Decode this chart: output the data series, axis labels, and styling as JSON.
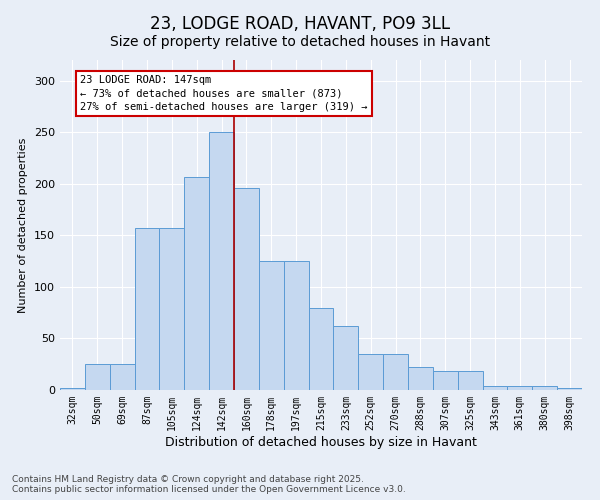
{
  "title": "23, LODGE ROAD, HAVANT, PO9 3LL",
  "subtitle": "Size of property relative to detached houses in Havant",
  "xlabel": "Distribution of detached houses by size in Havant",
  "ylabel": "Number of detached properties",
  "categories": [
    "32sqm",
    "50sqm",
    "69sqm",
    "87sqm",
    "105sqm",
    "124sqm",
    "142sqm",
    "160sqm",
    "178sqm",
    "197sqm",
    "215sqm",
    "233sqm",
    "252sqm",
    "270sqm",
    "288sqm",
    "307sqm",
    "325sqm",
    "343sqm",
    "361sqm",
    "380sqm",
    "398sqm"
  ],
  "bar_heights": [
    2,
    25,
    25,
    157,
    157,
    207,
    250,
    196,
    125,
    125,
    80,
    62,
    35,
    35,
    22,
    18,
    18,
    4,
    4,
    4,
    2
  ],
  "bar_color": "#c5d8f0",
  "bar_edge_color": "#5b9bd5",
  "vline_x": 6.5,
  "vline_color": "#aa0000",
  "annotation_line1": "23 LODGE ROAD: 147sqm",
  "annotation_line2": "← 73% of detached houses are smaller (873)",
  "annotation_line3": "27% of semi-detached houses are larger (319) →",
  "annotation_box_color": "#ffffff",
  "annotation_box_edge": "#cc0000",
  "ylim": [
    0,
    320
  ],
  "yticks": [
    0,
    50,
    100,
    150,
    200,
    250,
    300
  ],
  "background_color": "#e8eef7",
  "footer_line1": "Contains HM Land Registry data © Crown copyright and database right 2025.",
  "footer_line2": "Contains public sector information licensed under the Open Government Licence v3.0.",
  "title_fontsize": 12,
  "subtitle_fontsize": 10,
  "xlabel_fontsize": 9,
  "ylabel_fontsize": 8,
  "tick_fontsize": 7,
  "ann_fontsize": 7.5,
  "footer_fontsize": 6.5
}
